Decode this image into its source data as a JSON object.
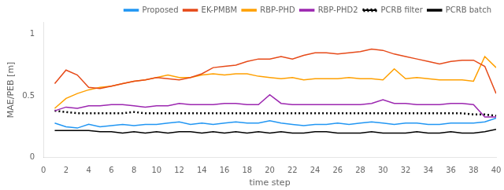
{
  "chart_data": {
    "type": "line",
    "xlabel": "time step",
    "ylabel": "MAE/PEB [m]",
    "x": [
      1,
      2,
      3,
      4,
      5,
      6,
      7,
      8,
      9,
      10,
      11,
      12,
      13,
      14,
      15,
      16,
      17,
      18,
      19,
      20,
      21,
      22,
      23,
      24,
      25,
      26,
      27,
      28,
      29,
      30,
      31,
      32,
      33,
      34,
      35,
      36,
      37,
      38,
      39,
      40
    ],
    "series": [
      {
        "name": "Proposed",
        "color": "#2196F3",
        "line_style": "solid",
        "values": [
          0.28,
          0.25,
          0.24,
          0.27,
          0.25,
          0.26,
          0.27,
          0.26,
          0.27,
          0.27,
          0.28,
          0.29,
          0.27,
          0.28,
          0.27,
          0.28,
          0.29,
          0.28,
          0.28,
          0.3,
          0.28,
          0.27,
          0.26,
          0.27,
          0.27,
          0.28,
          0.27,
          0.28,
          0.29,
          0.28,
          0.27,
          0.28,
          0.28,
          0.27,
          0.27,
          0.28,
          0.28,
          0.28,
          0.29,
          0.32
        ]
      },
      {
        "name": "EK-PMBM",
        "color": "#E64A19",
        "line_style": "solid",
        "values": [
          0.6,
          0.71,
          0.67,
          0.57,
          0.56,
          0.58,
          0.6,
          0.62,
          0.63,
          0.65,
          0.64,
          0.63,
          0.65,
          0.68,
          0.73,
          0.74,
          0.75,
          0.78,
          0.8,
          0.8,
          0.82,
          0.8,
          0.83,
          0.85,
          0.85,
          0.84,
          0.85,
          0.86,
          0.88,
          0.87,
          0.84,
          0.82,
          0.8,
          0.78,
          0.76,
          0.78,
          0.79,
          0.79,
          0.74,
          0.52
        ]
      },
      {
        "name": "RBP-PHD",
        "color": "#FFA000",
        "line_style": "solid",
        "values": [
          0.4,
          0.48,
          0.52,
          0.55,
          0.57,
          0.58,
          0.6,
          0.62,
          0.63,
          0.65,
          0.67,
          0.65,
          0.65,
          0.67,
          0.68,
          0.67,
          0.68,
          0.68,
          0.66,
          0.65,
          0.64,
          0.65,
          0.63,
          0.64,
          0.64,
          0.64,
          0.65,
          0.64,
          0.64,
          0.63,
          0.72,
          0.64,
          0.65,
          0.64,
          0.63,
          0.63,
          0.63,
          0.62,
          0.82,
          0.73
        ]
      },
      {
        "name": "RBP-PHD2",
        "color": "#9C27B0",
        "line_style": "solid",
        "values": [
          0.38,
          0.41,
          0.4,
          0.42,
          0.42,
          0.43,
          0.43,
          0.42,
          0.41,
          0.42,
          0.42,
          0.44,
          0.43,
          0.43,
          0.43,
          0.44,
          0.44,
          0.43,
          0.43,
          0.51,
          0.44,
          0.43,
          0.43,
          0.43,
          0.43,
          0.43,
          0.43,
          0.43,
          0.44,
          0.47,
          0.44,
          0.44,
          0.43,
          0.43,
          0.43,
          0.44,
          0.44,
          0.43,
          0.33,
          0.33
        ]
      },
      {
        "name": "PCRB filter",
        "color": "#000000",
        "line_style": "dotted",
        "values": [
          0.38,
          0.37,
          0.36,
          0.36,
          0.36,
          0.36,
          0.36,
          0.37,
          0.36,
          0.36,
          0.36,
          0.36,
          0.36,
          0.36,
          0.36,
          0.36,
          0.36,
          0.36,
          0.36,
          0.36,
          0.36,
          0.36,
          0.36,
          0.36,
          0.36,
          0.36,
          0.36,
          0.36,
          0.36,
          0.36,
          0.36,
          0.36,
          0.36,
          0.36,
          0.36,
          0.36,
          0.36,
          0.35,
          0.35,
          0.34
        ]
      },
      {
        "name": "PCRB batch",
        "color": "#000000",
        "line_style": "solid",
        "values": [
          0.22,
          0.22,
          0.22,
          0.22,
          0.21,
          0.21,
          0.2,
          0.21,
          0.2,
          0.21,
          0.2,
          0.21,
          0.21,
          0.2,
          0.21,
          0.2,
          0.21,
          0.2,
          0.21,
          0.2,
          0.21,
          0.2,
          0.2,
          0.21,
          0.21,
          0.2,
          0.2,
          0.2,
          0.21,
          0.2,
          0.2,
          0.2,
          0.21,
          0.2,
          0.2,
          0.21,
          0.2,
          0.2,
          0.21,
          0.23
        ]
      }
    ],
    "xlim": [
      0,
      40
    ],
    "xticks": [
      0,
      2,
      4,
      6,
      8,
      10,
      12,
      14,
      16,
      18,
      20,
      22,
      24,
      26,
      28,
      30,
      32,
      34,
      36,
      38,
      40
    ],
    "ylim": [
      0,
      1.1
    ],
    "yticks": [
      0,
      0.5,
      1
    ],
    "grid": false,
    "legend": "upper right"
  }
}
